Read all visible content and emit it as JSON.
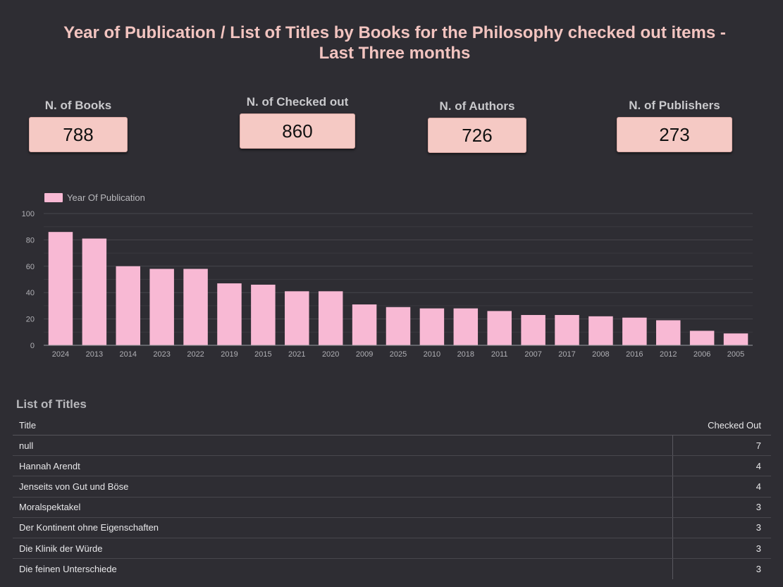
{
  "header": {
    "title_line1": "Year of Publication / List of Titles by Books for the Philosophy checked out items  -",
    "title_line2": "Last Three months"
  },
  "kpis": [
    {
      "label": "N. of Books",
      "value": "788"
    },
    {
      "label": "N. of Checked out",
      "value": "860"
    },
    {
      "label": "N. of Authors",
      "value": "726"
    },
    {
      "label": "N. of Publishers",
      "value": "273"
    }
  ],
  "chart_data": {
    "type": "bar",
    "title": "",
    "legend": "Year Of Publication",
    "legend_position": "top-left",
    "categories": [
      "2024",
      "2013",
      "2014",
      "2023",
      "2022",
      "2019",
      "2015",
      "2021",
      "2020",
      "2009",
      "2025",
      "2010",
      "2018",
      "2011",
      "2007",
      "2017",
      "2008",
      "2016",
      "2012",
      "2006",
      "2005"
    ],
    "values": [
      86,
      81,
      60,
      58,
      58,
      47,
      46,
      41,
      41,
      31,
      29,
      28,
      28,
      26,
      23,
      23,
      22,
      21,
      19,
      11,
      9
    ],
    "ylim": [
      0,
      100
    ],
    "yticks": [
      "0",
      "20",
      "40",
      "60",
      "80",
      "100"
    ],
    "grid": true,
    "color": "#f8b9d4"
  },
  "list": {
    "title": "List of Titles",
    "col_title": "Title",
    "col_count": "Checked Out",
    "rows": [
      {
        "title": "null",
        "count": "7"
      },
      {
        "title": "Hannah Arendt",
        "count": "4"
      },
      {
        "title": "Jenseits von Gut und Böse",
        "count": "4"
      },
      {
        "title": "Moralspektakel",
        "count": "3"
      },
      {
        "title": "Der Kontinent ohne Eigenschaften",
        "count": "3"
      },
      {
        "title": "Die Klinik der Würde",
        "count": "3"
      },
      {
        "title": "Die feinen Unterschiede",
        "count": "3"
      }
    ]
  }
}
